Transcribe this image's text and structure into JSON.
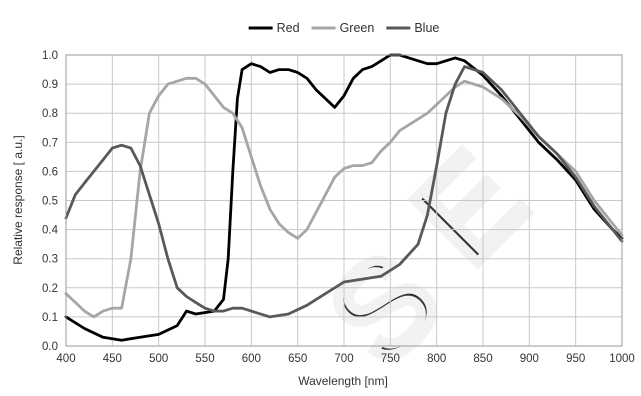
{
  "chart_data": {
    "type": "line",
    "title": "",
    "xlabel": "Wavelength [nm]",
    "ylabel": "Relative response [ a.u.]",
    "xlim": [
      400,
      1000
    ],
    "ylim": [
      0.0,
      1.0
    ],
    "xticks": [
      400,
      450,
      500,
      550,
      600,
      650,
      700,
      750,
      800,
      850,
      900,
      950,
      1000
    ],
    "yticks": [
      "0.0",
      "0.1",
      "0.2",
      "0.3",
      "0.4",
      "0.5",
      "0.6",
      "0.7",
      "0.8",
      "0.9",
      "1.0"
    ],
    "grid": true,
    "legend_position": "top-center",
    "series": [
      {
        "name": "Red",
        "color": "#000000",
        "x": [
          400,
          420,
          440,
          460,
          480,
          500,
          520,
          530,
          540,
          560,
          570,
          575,
          580,
          585,
          590,
          600,
          610,
          620,
          630,
          640,
          650,
          660,
          670,
          680,
          690,
          700,
          710,
          720,
          730,
          740,
          750,
          760,
          770,
          780,
          790,
          800,
          810,
          820,
          830,
          850,
          870,
          890,
          910,
          930,
          950,
          970,
          990,
          1000
        ],
        "y": [
          0.1,
          0.06,
          0.03,
          0.02,
          0.03,
          0.04,
          0.07,
          0.12,
          0.11,
          0.12,
          0.16,
          0.3,
          0.6,
          0.85,
          0.95,
          0.97,
          0.96,
          0.94,
          0.95,
          0.95,
          0.94,
          0.92,
          0.88,
          0.85,
          0.82,
          0.86,
          0.92,
          0.95,
          0.96,
          0.98,
          1.0,
          1.0,
          0.99,
          0.98,
          0.97,
          0.97,
          0.98,
          0.99,
          0.98,
          0.93,
          0.86,
          0.78,
          0.7,
          0.64,
          0.57,
          0.47,
          0.4,
          0.37
        ]
      },
      {
        "name": "Green",
        "color": "#a6a6a6",
        "x": [
          400,
          410,
          420,
          430,
          440,
          450,
          460,
          470,
          480,
          490,
          500,
          510,
          520,
          530,
          540,
          550,
          560,
          570,
          580,
          590,
          600,
          610,
          620,
          630,
          640,
          650,
          660,
          670,
          680,
          690,
          700,
          710,
          720,
          730,
          740,
          750,
          760,
          770,
          780,
          790,
          800,
          810,
          820,
          830,
          850,
          870,
          890,
          910,
          930,
          950,
          970,
          990,
          1000
        ],
        "y": [
          0.18,
          0.15,
          0.12,
          0.1,
          0.12,
          0.13,
          0.13,
          0.3,
          0.6,
          0.8,
          0.86,
          0.9,
          0.91,
          0.92,
          0.92,
          0.9,
          0.86,
          0.82,
          0.8,
          0.75,
          0.65,
          0.55,
          0.47,
          0.42,
          0.39,
          0.37,
          0.4,
          0.46,
          0.52,
          0.58,
          0.61,
          0.62,
          0.62,
          0.63,
          0.67,
          0.7,
          0.74,
          0.76,
          0.78,
          0.8,
          0.83,
          0.86,
          0.89,
          0.91,
          0.89,
          0.85,
          0.79,
          0.72,
          0.66,
          0.6,
          0.5,
          0.42,
          0.38
        ]
      },
      {
        "name": "Blue",
        "color": "#595959",
        "x": [
          400,
          410,
          420,
          430,
          440,
          450,
          460,
          470,
          480,
          490,
          500,
          510,
          520,
          530,
          540,
          550,
          560,
          570,
          580,
          590,
          600,
          620,
          640,
          660,
          680,
          700,
          720,
          740,
          760,
          780,
          790,
          800,
          810,
          820,
          830,
          850,
          870,
          890,
          910,
          930,
          950,
          970,
          990,
          1000
        ],
        "y": [
          0.44,
          0.52,
          0.56,
          0.6,
          0.64,
          0.68,
          0.69,
          0.68,
          0.62,
          0.52,
          0.42,
          0.3,
          0.2,
          0.17,
          0.15,
          0.13,
          0.12,
          0.12,
          0.13,
          0.13,
          0.12,
          0.1,
          0.11,
          0.14,
          0.18,
          0.22,
          0.23,
          0.24,
          0.28,
          0.35,
          0.45,
          0.62,
          0.8,
          0.9,
          0.96,
          0.94,
          0.88,
          0.8,
          0.72,
          0.66,
          0.58,
          0.48,
          0.4,
          0.36
        ]
      }
    ]
  }
}
